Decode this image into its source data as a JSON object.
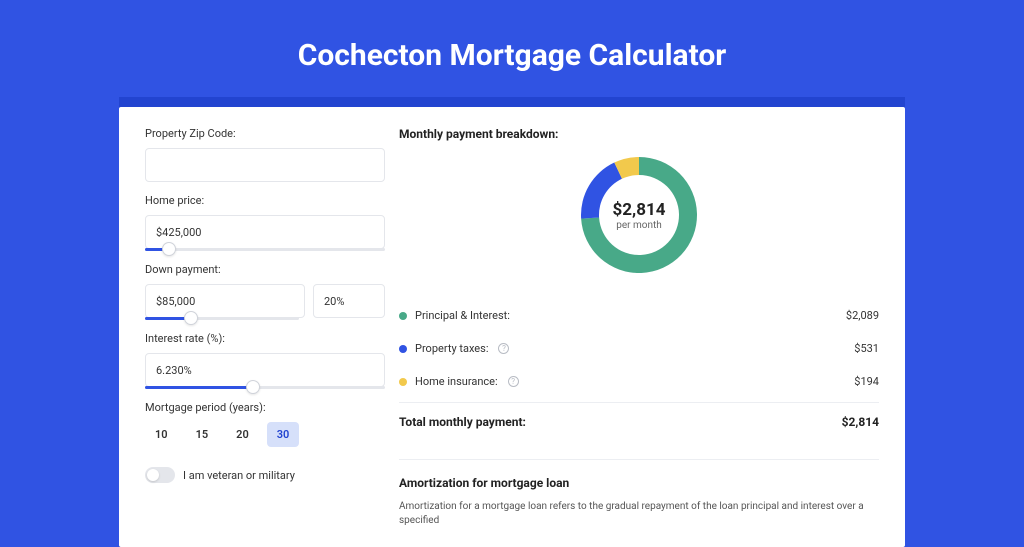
{
  "title": "Cochecton Mortgage Calculator",
  "form": {
    "zip": {
      "label": "Property Zip Code:",
      "value": ""
    },
    "price": {
      "label": "Home price:",
      "value": "$425,000",
      "slider_pct": 10
    },
    "down": {
      "label": "Down payment:",
      "value": "$85,000",
      "pct_value": "20%",
      "slider_pct": 30
    },
    "rate": {
      "label": "Interest rate (%):",
      "value": "6.230%",
      "slider_pct": 45
    },
    "period": {
      "label": "Mortgage period (years):",
      "options": [
        "10",
        "15",
        "20",
        "30"
      ],
      "active": "30"
    },
    "veteran": {
      "label": "I am veteran or military",
      "checked": false
    }
  },
  "breakdown": {
    "title": "Monthly payment breakdown:",
    "center_value": "$2,814",
    "center_sub": "per month",
    "items": [
      {
        "label": "Principal & Interest:",
        "value": "$2,089",
        "color": "#48a988",
        "has_info": false,
        "pct": 74
      },
      {
        "label": "Property taxes:",
        "value": "$531",
        "color": "#3053e3",
        "has_info": true,
        "pct": 19
      },
      {
        "label": "Home insurance:",
        "value": "$194",
        "color": "#f2c94c",
        "has_info": true,
        "pct": 7
      }
    ],
    "total_label": "Total monthly payment:",
    "total_value": "$2,814"
  },
  "amort": {
    "title": "Amortization for mortgage loan",
    "desc": "Amortization for a mortgage loan refers to the gradual repayment of the loan principal and interest over a specified"
  },
  "colors": {
    "page_bg": "#3053e3",
    "shadow_bg": "#2244d0",
    "donut_ring_width": 18
  }
}
